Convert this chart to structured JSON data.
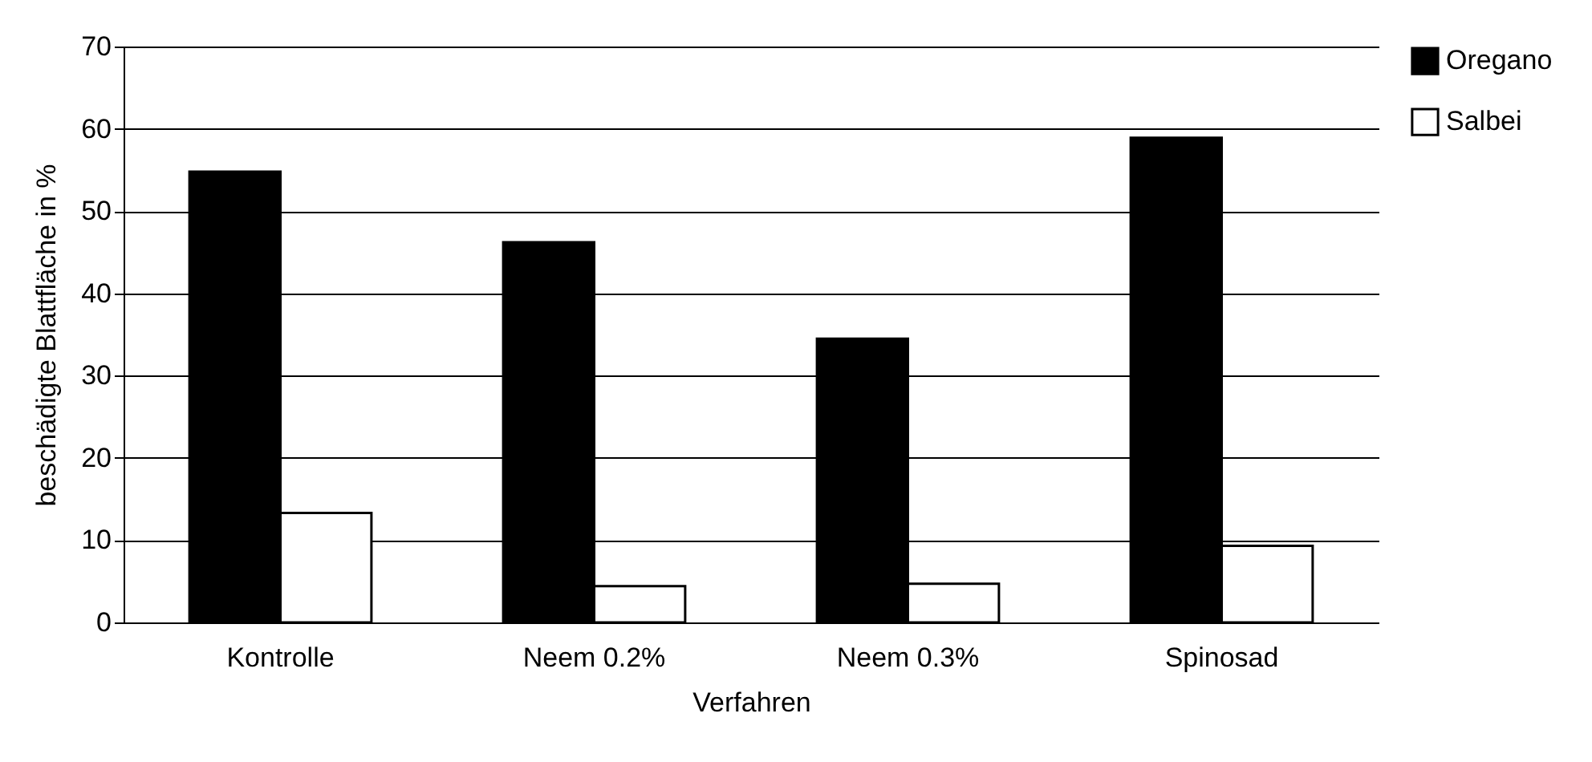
{
  "chart_data": {
    "type": "bar",
    "xlabel": "Verfahren",
    "ylabel": "beschädigte Blattfläche in %",
    "categories": [
      "Kontrolle",
      "Neem 0.2%",
      "Neem 0.3%",
      "Spinosad"
    ],
    "series": [
      {
        "name": "Oregano",
        "color": "#000000",
        "values": [
          54.8,
          46.2,
          34.5,
          58.9
        ]
      },
      {
        "name": "Salbei",
        "color": "#ffffff",
        "values": [
          13.3,
          4.4,
          4.7,
          9.3
        ]
      }
    ],
    "ylim": [
      0,
      70
    ],
    "yticks": [
      0,
      10,
      20,
      30,
      40,
      50,
      60,
      70
    ],
    "grid": "y",
    "legend": "right"
  }
}
